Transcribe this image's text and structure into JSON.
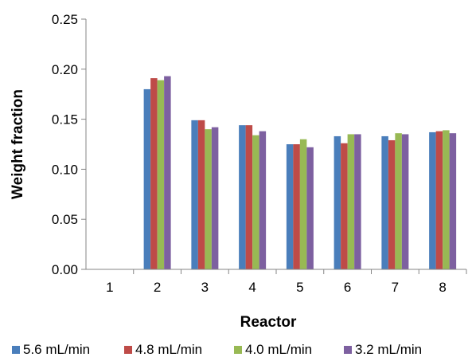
{
  "chart_data": {
    "type": "bar",
    "title": "",
    "xlabel": "Reactor",
    "ylabel": "Weight fraction",
    "categories": [
      "1",
      "2",
      "3",
      "4",
      "5",
      "6",
      "7",
      "8"
    ],
    "ylim": [
      0,
      0.25
    ],
    "yticks": [
      "0.00",
      "0.05",
      "0.10",
      "0.15",
      "0.20",
      "0.25"
    ],
    "grid": false,
    "legend_position": "bottom",
    "series": [
      {
        "name": "5.6 mL/min",
        "color": "#4a7ebb",
        "values": [
          0,
          0.18,
          0.149,
          0.144,
          0.125,
          0.133,
          0.133,
          0.137
        ]
      },
      {
        "name": "4.8 mL/min",
        "color": "#be4b48",
        "values": [
          0,
          0.191,
          0.149,
          0.144,
          0.125,
          0.126,
          0.129,
          0.138
        ]
      },
      {
        "name": "4.0 mL/min",
        "color": "#98b954",
        "values": [
          0,
          0.189,
          0.14,
          0.134,
          0.13,
          0.135,
          0.136,
          0.139
        ]
      },
      {
        "name": "3.2 mL/min",
        "color": "#7d60a0",
        "values": [
          0,
          0.193,
          0.142,
          0.138,
          0.122,
          0.135,
          0.135,
          0.136
        ]
      }
    ]
  }
}
